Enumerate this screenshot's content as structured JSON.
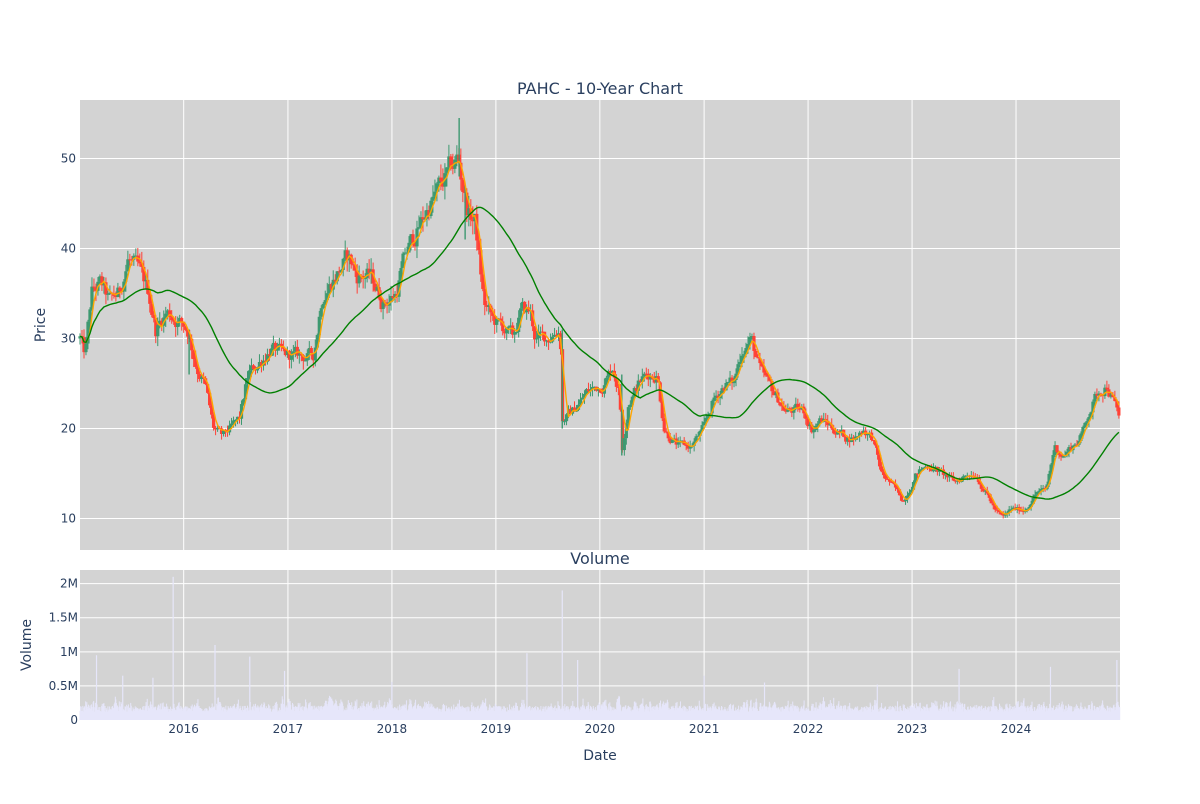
{
  "chart_data": [
    {
      "type": "candlestick",
      "title": "PAHC - 10-Year Chart",
      "xlabel": "",
      "ylabel": "Price",
      "xlim": [
        "2015-01-02",
        "2024-12-31"
      ],
      "ylim": [
        6.5,
        56.5
      ],
      "x_ticks": [
        "2016",
        "2017",
        "2018",
        "2019",
        "2020",
        "2021",
        "2022",
        "2023",
        "2024"
      ],
      "y_ticks": [
        10,
        20,
        30,
        40,
        50
      ],
      "grid": true,
      "series_color": {
        "up": "#3D9970",
        "down": "#FF4136",
        "short_ma": "#FFA500",
        "long_ma": "#008000"
      },
      "key_points": [
        [
          "2015-01-02",
          30
        ],
        [
          "2015-01-20",
          28
        ],
        [
          "2015-02-12",
          35
        ],
        [
          "2015-03-15",
          36
        ],
        [
          "2015-04-15",
          34
        ],
        [
          "2015-05-20",
          35
        ],
        [
          "2015-06-20",
          39
        ],
        [
          "2015-08-01",
          37
        ],
        [
          "2015-09-01",
          35
        ],
        [
          "2015-09-25",
          31
        ],
        [
          "2015-11-01",
          33
        ],
        [
          "2015-12-15",
          32
        ],
        [
          "2016-01-15",
          31
        ],
        [
          "2016-02-15",
          27
        ],
        [
          "2016-03-15",
          25
        ],
        [
          "2016-04-15",
          20
        ],
        [
          "2016-05-15",
          19
        ],
        [
          "2016-06-15",
          20
        ],
        [
          "2016-07-15",
          21
        ],
        [
          "2016-08-15",
          26
        ],
        [
          "2016-09-15",
          27
        ],
        [
          "2016-11-01",
          29
        ],
        [
          "2016-12-15",
          28
        ],
        [
          "2017-02-01",
          28
        ],
        [
          "2017-04-01",
          28
        ],
        [
          "2017-05-01",
          35
        ],
        [
          "2017-06-15",
          37
        ],
        [
          "2017-08-01",
          39
        ],
        [
          "2017-09-01",
          37
        ],
        [
          "2017-10-15",
          37
        ],
        [
          "2017-12-01",
          34
        ],
        [
          "2018-01-15",
          35
        ],
        [
          "2018-02-15",
          39
        ],
        [
          "2018-04-01",
          42
        ],
        [
          "2018-05-15",
          45
        ],
        [
          "2018-07-15",
          48
        ],
        [
          "2018-08-20",
          50
        ],
        [
          "2018-09-25",
          44
        ],
        [
          "2018-10-20",
          43
        ],
        [
          "2018-11-20",
          34
        ],
        [
          "2018-12-20",
          32
        ],
        [
          "2019-02-01",
          31
        ],
        [
          "2019-03-01",
          30
        ],
        [
          "2019-04-01",
          33
        ],
        [
          "2019-05-01",
          33
        ],
        [
          "2019-05-20",
          30
        ],
        [
          "2019-07-01",
          30
        ],
        [
          "2019-08-01",
          31
        ],
        [
          "2019-08-15",
          31
        ],
        [
          "2019-08-22",
          21
        ],
        [
          "2019-10-01",
          22
        ],
        [
          "2019-11-15",
          24
        ],
        [
          "2020-01-15",
          25
        ],
        [
          "2020-02-15",
          27
        ],
        [
          "2020-03-10",
          24
        ],
        [
          "2020-03-20",
          18
        ],
        [
          "2020-04-10",
          23
        ],
        [
          "2020-05-15",
          25
        ],
        [
          "2020-06-15",
          26
        ],
        [
          "2020-07-20",
          26
        ],
        [
          "2020-08-15",
          20
        ],
        [
          "2020-10-01",
          18
        ],
        [
          "2020-11-15",
          18
        ],
        [
          "2021-01-01",
          20
        ],
        [
          "2021-02-01",
          23
        ],
        [
          "2021-03-15",
          25
        ],
        [
          "2021-04-15",
          25
        ],
        [
          "2021-05-15",
          29
        ],
        [
          "2021-06-15",
          30
        ],
        [
          "2021-07-20",
          26
        ],
        [
          "2021-09-01",
          24
        ],
        [
          "2021-10-15",
          22
        ],
        [
          "2021-12-15",
          22
        ],
        [
          "2022-01-15",
          20
        ],
        [
          "2022-02-15",
          21
        ],
        [
          "2022-04-01",
          20
        ],
        [
          "2022-05-15",
          19
        ],
        [
          "2022-06-15",
          19
        ],
        [
          "2022-07-15",
          20
        ],
        [
          "2022-08-15",
          19
        ],
        [
          "2022-09-15",
          15
        ],
        [
          "2022-10-15",
          14
        ],
        [
          "2022-12-01",
          12
        ],
        [
          "2023-01-15",
          15
        ],
        [
          "2023-03-01",
          16
        ],
        [
          "2023-04-15",
          15
        ],
        [
          "2023-06-01",
          14
        ],
        [
          "2023-07-15",
          15
        ],
        [
          "2023-08-15",
          15
        ],
        [
          "2023-09-15",
          13
        ],
        [
          "2023-10-20",
          11
        ],
        [
          "2023-11-15",
          10
        ],
        [
          "2023-12-15",
          11
        ],
        [
          "2024-02-01",
          11
        ],
        [
          "2024-03-15",
          13
        ],
        [
          "2024-04-15",
          13
        ],
        [
          "2024-05-15",
          18
        ],
        [
          "2024-06-15",
          17
        ],
        [
          "2024-07-15",
          18
        ],
        [
          "2024-08-15",
          19
        ],
        [
          "2024-09-15",
          22
        ],
        [
          "2024-10-15",
          24
        ],
        [
          "2024-11-15",
          25
        ],
        [
          "2024-12-31",
          21
        ]
      ],
      "spikes": [
        [
          "2018-08-25",
          54.5,
          48
        ],
        [
          "2018-09-15",
          47,
          41
        ],
        [
          "2016-01-20",
          31,
          26
        ],
        [
          "2019-08-22",
          31,
          20
        ],
        [
          "2020-03-18",
          26,
          17
        ]
      ]
    },
    {
      "type": "bar",
      "title": "Volume",
      "xlabel": "Date",
      "ylabel": "Volume",
      "xlim": [
        "2015-01-02",
        "2024-12-31"
      ],
      "ylim": [
        0,
        2200000
      ],
      "x_ticks": [
        "2016",
        "2017",
        "2018",
        "2019",
        "2020",
        "2021",
        "2022",
        "2023",
        "2024"
      ],
      "y_ticks": [
        {
          "value": 0,
          "label": "0"
        },
        {
          "value": 500000,
          "label": "0.5M"
        },
        {
          "value": 1000000,
          "label": "1M"
        },
        {
          "value": 1500000,
          "label": "1.5M"
        },
        {
          "value": 2000000,
          "label": "2M"
        }
      ],
      "grid": true,
      "bar_color": "#E6E6FA",
      "volume_peaks": [
        [
          "2015-11-25",
          2100000
        ],
        [
          "2019-08-22",
          1900000
        ],
        [
          "2016-04-20",
          1100000
        ],
        [
          "2019-04-20",
          980000
        ],
        [
          "2015-03-01",
          950000
        ],
        [
          "2016-08-20",
          930000
        ],
        [
          "2019-10-15",
          880000
        ],
        [
          "2024-12-20",
          880000
        ],
        [
          "2024-05-01",
          780000
        ],
        [
          "2023-06-15",
          750000
        ],
        [
          "2016-12-20",
          720000
        ],
        [
          "2015-06-01",
          650000
        ],
        [
          "2021-01-01",
          650000
        ],
        [
          "2015-09-15",
          620000
        ],
        [
          "2018-01-01",
          560000
        ],
        [
          "2021-08-01",
          550000
        ],
        [
          "2022-09-01",
          520000
        ]
      ]
    }
  ]
}
